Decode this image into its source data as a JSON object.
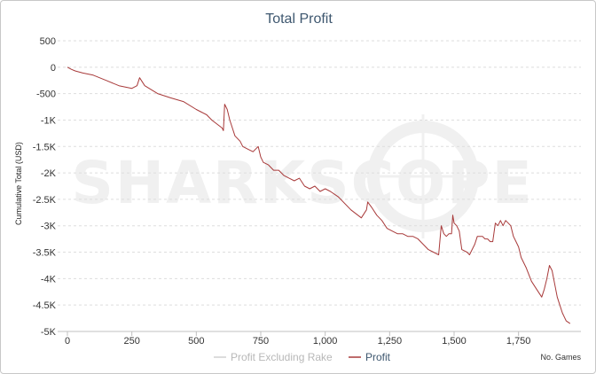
{
  "chart_data": {
    "type": "line",
    "title": "Total Profit",
    "ylabel": "Cumulative Total (USD)",
    "xlabel": "No. Games",
    "xlim": [
      0,
      1960
    ],
    "ylim": [
      -5000,
      500
    ],
    "x_ticks": [
      0,
      250,
      500,
      750,
      1000,
      1250,
      1500,
      1750
    ],
    "x_tick_labels": [
      "0",
      "250",
      "500",
      "750",
      "1,000",
      "1,250",
      "1,500",
      "1,750"
    ],
    "y_ticks": [
      500,
      0,
      -500,
      -1000,
      -1500,
      -2000,
      -2500,
      -3000,
      -3500,
      -4000,
      -4500,
      -5000
    ],
    "y_tick_labels": [
      "500",
      "0",
      "-500",
      "-1K",
      "-1.5K",
      "-2K",
      "-2.5K",
      "-3K",
      "-3.5K",
      "-4K",
      "-4.5K",
      "-5K"
    ],
    "grid": true,
    "legend_position": "bottom",
    "watermark": "SHARKSCOPE",
    "colors": {
      "profit": "#a83a3a",
      "profit_excluding_rake": "#d0d0d0",
      "title": "#3e576f",
      "grid": "#dddddd"
    },
    "series": [
      {
        "name": "Profit Excluding Rake",
        "x": [],
        "y": []
      },
      {
        "name": "Profit",
        "x": [
          0,
          15,
          30,
          60,
          100,
          150,
          200,
          250,
          270,
          280,
          300,
          350,
          400,
          450,
          500,
          520,
          540,
          560,
          600,
          605,
          610,
          620,
          630,
          640,
          650,
          660,
          670,
          680,
          700,
          720,
          740,
          750,
          760,
          780,
          800,
          820,
          840,
          860,
          880,
          900,
          920,
          940,
          960,
          980,
          1000,
          1020,
          1050,
          1100,
          1140,
          1160,
          1165,
          1180,
          1200,
          1220,
          1240,
          1260,
          1280,
          1300,
          1320,
          1340,
          1360,
          1380,
          1400,
          1420,
          1440,
          1450,
          1460,
          1470,
          1480,
          1490,
          1495,
          1500,
          1510,
          1520,
          1530,
          1550,
          1560,
          1570,
          1580,
          1590,
          1600,
          1610,
          1620,
          1630,
          1640,
          1650,
          1660,
          1670,
          1680,
          1690,
          1700,
          1710,
          1720,
          1730,
          1740,
          1750,
          1760,
          1780,
          1800,
          1820,
          1840,
          1850,
          1860,
          1870,
          1880,
          1890,
          1900,
          1910,
          1920,
          1935,
          1950
        ],
        "y": [
          0,
          -40,
          -70,
          -110,
          -150,
          -250,
          -350,
          -400,
          -350,
          -200,
          -350,
          -500,
          -580,
          -650,
          -800,
          -850,
          -900,
          -1000,
          -1150,
          -1200,
          -700,
          -800,
          -1000,
          -1150,
          -1300,
          -1350,
          -1400,
          -1500,
          -1550,
          -1600,
          -1500,
          -1700,
          -1800,
          -1850,
          -1950,
          -1950,
          -2050,
          -2100,
          -2150,
          -2100,
          -2250,
          -2300,
          -2250,
          -2350,
          -2300,
          -2350,
          -2450,
          -2700,
          -2850,
          -2700,
          -2550,
          -2650,
          -2800,
          -2900,
          -3050,
          -3100,
          -3150,
          -3150,
          -3200,
          -3200,
          -3250,
          -3350,
          -3450,
          -3500,
          -3550,
          -3000,
          -3150,
          -3200,
          -3150,
          -3150,
          -2800,
          -2950,
          -3000,
          -3100,
          -3450,
          -3500,
          -3550,
          -3450,
          -3350,
          -3200,
          -3200,
          -3200,
          -3250,
          -3250,
          -3300,
          -3300,
          -2950,
          -3000,
          -2900,
          -3000,
          -2900,
          -2950,
          -3000,
          -3200,
          -3300,
          -3400,
          -3600,
          -3800,
          -4050,
          -4200,
          -4350,
          -4200,
          -4000,
          -3750,
          -3850,
          -4100,
          -4350,
          -4500,
          -4650,
          -4800,
          -4850
        ]
      }
    ]
  }
}
